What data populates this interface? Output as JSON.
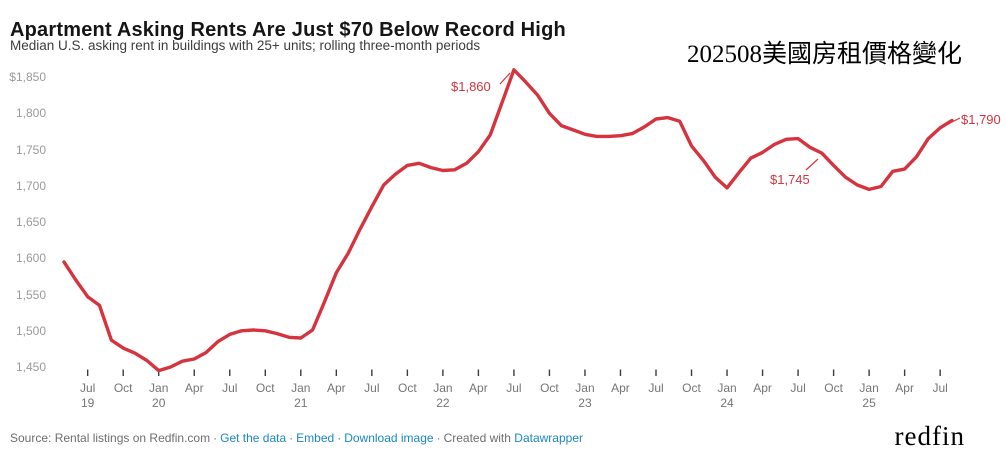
{
  "header": {
    "title": "Apartment Asking Rents Are Just $70 Below Record High",
    "subtitle": "Median U.S. asking rent in buildings with 25+ units; rolling three-month periods",
    "overlay_note": "202508美國房租價格變化"
  },
  "chart_data": {
    "type": "line",
    "title": "Apartment Asking Rents Are Just $70 Below Record High",
    "subtitle": "Median U.S. asking rent in buildings with 25+ units; rolling three-month periods",
    "series_name": "Median U.S. asking rent",
    "series_color": "#d5343f",
    "grid": "off",
    "legend": "none",
    "x_start": "2019-05",
    "x_end": "2025-08",
    "frequency": "monthly",
    "ylim": [
      1445,
      1865
    ],
    "values": [
      1595,
      1570,
      1547,
      1535,
      1487,
      1476,
      1469,
      1459,
      1445,
      1450,
      1458,
      1461,
      1470,
      1485,
      1495,
      1500,
      1501,
      1500,
      1496,
      1491,
      1490,
      1501,
      1540,
      1580,
      1607,
      1640,
      1671,
      1701,
      1716,
      1728,
      1731,
      1725,
      1721,
      1722,
      1731,
      1747,
      1770,
      1815,
      1860,
      1843,
      1825,
      1800,
      1783,
      1777,
      1771,
      1768,
      1768,
      1769,
      1772,
      1781,
      1792,
      1794,
      1789,
      1755,
      1735,
      1712,
      1697,
      1718,
      1738,
      1746,
      1757,
      1764,
      1765,
      1753,
      1745,
      1728,
      1712,
      1701,
      1695,
      1699,
      1720,
      1723,
      1740,
      1765,
      1780,
      1790
    ],
    "y_axis": {
      "ticks": [
        {
          "label": "$1,850",
          "value": 1850
        },
        {
          "label": "1,800",
          "value": 1800
        },
        {
          "label": "1,750",
          "value": 1750
        },
        {
          "label": "1,700",
          "value": 1700
        },
        {
          "label": "1,650",
          "value": 1650
        },
        {
          "label": "1,600",
          "value": 1600
        },
        {
          "label": "1,550",
          "value": 1550
        },
        {
          "label": "1,500",
          "value": 1500
        },
        {
          "label": "1,450",
          "value": 1450
        }
      ]
    },
    "x_axis": {
      "ticks": [
        {
          "label": "Jul",
          "year": "19",
          "index": 2
        },
        {
          "label": "Oct",
          "year": "",
          "index": 5
        },
        {
          "label": "Jan",
          "year": "20",
          "index": 8
        },
        {
          "label": "Apr",
          "year": "",
          "index": 11
        },
        {
          "label": "Jul",
          "year": "",
          "index": 14
        },
        {
          "label": "Oct",
          "year": "",
          "index": 17
        },
        {
          "label": "Jan",
          "year": "21",
          "index": 20
        },
        {
          "label": "Apr",
          "year": "",
          "index": 23
        },
        {
          "label": "Jul",
          "year": "",
          "index": 26
        },
        {
          "label": "Oct",
          "year": "",
          "index": 29
        },
        {
          "label": "Jan",
          "year": "22",
          "index": 32
        },
        {
          "label": "Apr",
          "year": "",
          "index": 35
        },
        {
          "label": "Jul",
          "year": "",
          "index": 38
        },
        {
          "label": "Oct",
          "year": "",
          "index": 41
        },
        {
          "label": "Jan",
          "year": "23",
          "index": 44
        },
        {
          "label": "Apr",
          "year": "",
          "index": 47
        },
        {
          "label": "Jul",
          "year": "",
          "index": 50
        },
        {
          "label": "Oct",
          "year": "",
          "index": 53
        },
        {
          "label": "Jan",
          "year": "24",
          "index": 56
        },
        {
          "label": "Apr",
          "year": "",
          "index": 59
        },
        {
          "label": "Jul",
          "year": "",
          "index": 62
        },
        {
          "label": "Oct",
          "year": "",
          "index": 65
        },
        {
          "label": "Jan",
          "year": "25",
          "index": 68
        },
        {
          "label": "Apr",
          "year": "",
          "index": 71
        },
        {
          "label": "Jul",
          "year": "",
          "index": 74
        }
      ]
    },
    "annotations": [
      {
        "text": "$1,860",
        "point": "2022-07",
        "value": 1860,
        "label_left": 451,
        "label_top": 79,
        "line": [
          500,
          84,
          510,
          73
        ]
      },
      {
        "text": "$1,745",
        "point": "2024-09",
        "value": 1745,
        "label_left": 770,
        "label_top": 172,
        "line": [
          806,
          170,
          818,
          159
        ]
      },
      {
        "text": "$1,790",
        "point": "2025-08",
        "value": 1790,
        "label_left": 961,
        "label_top": 112,
        "line": [
          952,
          122,
          960,
          118
        ]
      }
    ]
  },
  "footer": {
    "source_text": "Source: Rental listings on Redfin.com",
    "sep": "·",
    "links": [
      "Get the data",
      "Embed",
      "Download image"
    ],
    "created_prefix": "Created with",
    "created_link": "Datawrapper",
    "brand": "redfin"
  }
}
